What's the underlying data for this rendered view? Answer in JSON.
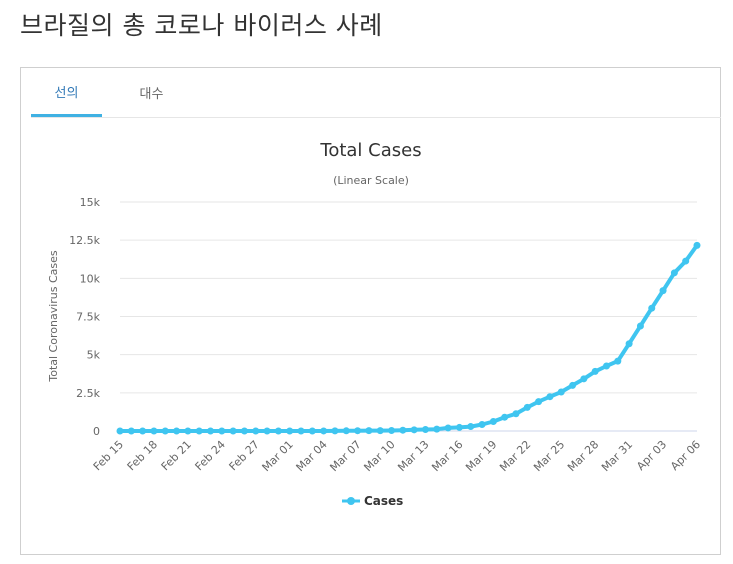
{
  "header": {
    "title": "브라질의 총 코로나 바이러스 사례"
  },
  "tabs": [
    {
      "label": "선의",
      "active": true
    },
    {
      "label": "대수",
      "active": false
    }
  ],
  "colors": {
    "series": "#3fc5f0",
    "tab_active": "#337ab7",
    "tab_underline": "#3fb1e3"
  },
  "chart_data": {
    "type": "line",
    "title": "Total Cases",
    "subtitle": "(Linear Scale)",
    "ylabel": "Total Coronavirus Cases",
    "xlabel": "",
    "ylim": [
      0,
      15000
    ],
    "y_ticks": [
      0,
      2500,
      5000,
      7500,
      10000,
      12500,
      15000
    ],
    "y_tick_labels": [
      "0",
      "2.5k",
      "5k",
      "7.5k",
      "10k",
      "12.5k",
      "15k"
    ],
    "grid": true,
    "legend": "bottom-center",
    "x": [
      "Feb 15",
      "Feb 16",
      "Feb 17",
      "Feb 18",
      "Feb 19",
      "Feb 20",
      "Feb 21",
      "Feb 22",
      "Feb 23",
      "Feb 24",
      "Feb 25",
      "Feb 26",
      "Feb 27",
      "Feb 28",
      "Feb 29",
      "Mar 01",
      "Mar 02",
      "Mar 03",
      "Mar 04",
      "Mar 05",
      "Mar 06",
      "Mar 07",
      "Mar 08",
      "Mar 09",
      "Mar 10",
      "Mar 11",
      "Mar 12",
      "Mar 13",
      "Mar 14",
      "Mar 15",
      "Mar 16",
      "Mar 17",
      "Mar 18",
      "Mar 19",
      "Mar 20",
      "Mar 21",
      "Mar 22",
      "Mar 23",
      "Mar 24",
      "Mar 25",
      "Mar 26",
      "Mar 27",
      "Mar 28",
      "Mar 29",
      "Mar 30",
      "Mar 31",
      "Apr 01",
      "Apr 02",
      "Apr 03",
      "Apr 04",
      "Apr 05",
      "Apr 06"
    ],
    "x_tick_labels": [
      "Feb 15",
      "Feb 18",
      "Feb 21",
      "Feb 24",
      "Feb 27",
      "Mar 01",
      "Mar 04",
      "Mar 07",
      "Mar 10",
      "Mar 13",
      "Mar 16",
      "Mar 19",
      "Mar 22",
      "Mar 25",
      "Mar 28",
      "Mar 31",
      "Apr 03",
      "Apr 06"
    ],
    "series": [
      {
        "name": "Cases",
        "values": [
          0,
          0,
          0,
          0,
          0,
          0,
          0,
          0,
          0,
          0,
          1,
          1,
          1,
          1,
          2,
          2,
          2,
          2,
          3,
          8,
          13,
          19,
          25,
          25,
          34,
          52,
          77,
          98,
          121,
          200,
          234,
          291,
          428,
          621,
          904,
          1128,
          1546,
          1924,
          2247,
          2554,
          2985,
          3417,
          3904,
          4256,
          4579,
          5717,
          6880,
          8044,
          9194,
          10360,
          11130,
          12161
        ]
      }
    ]
  }
}
